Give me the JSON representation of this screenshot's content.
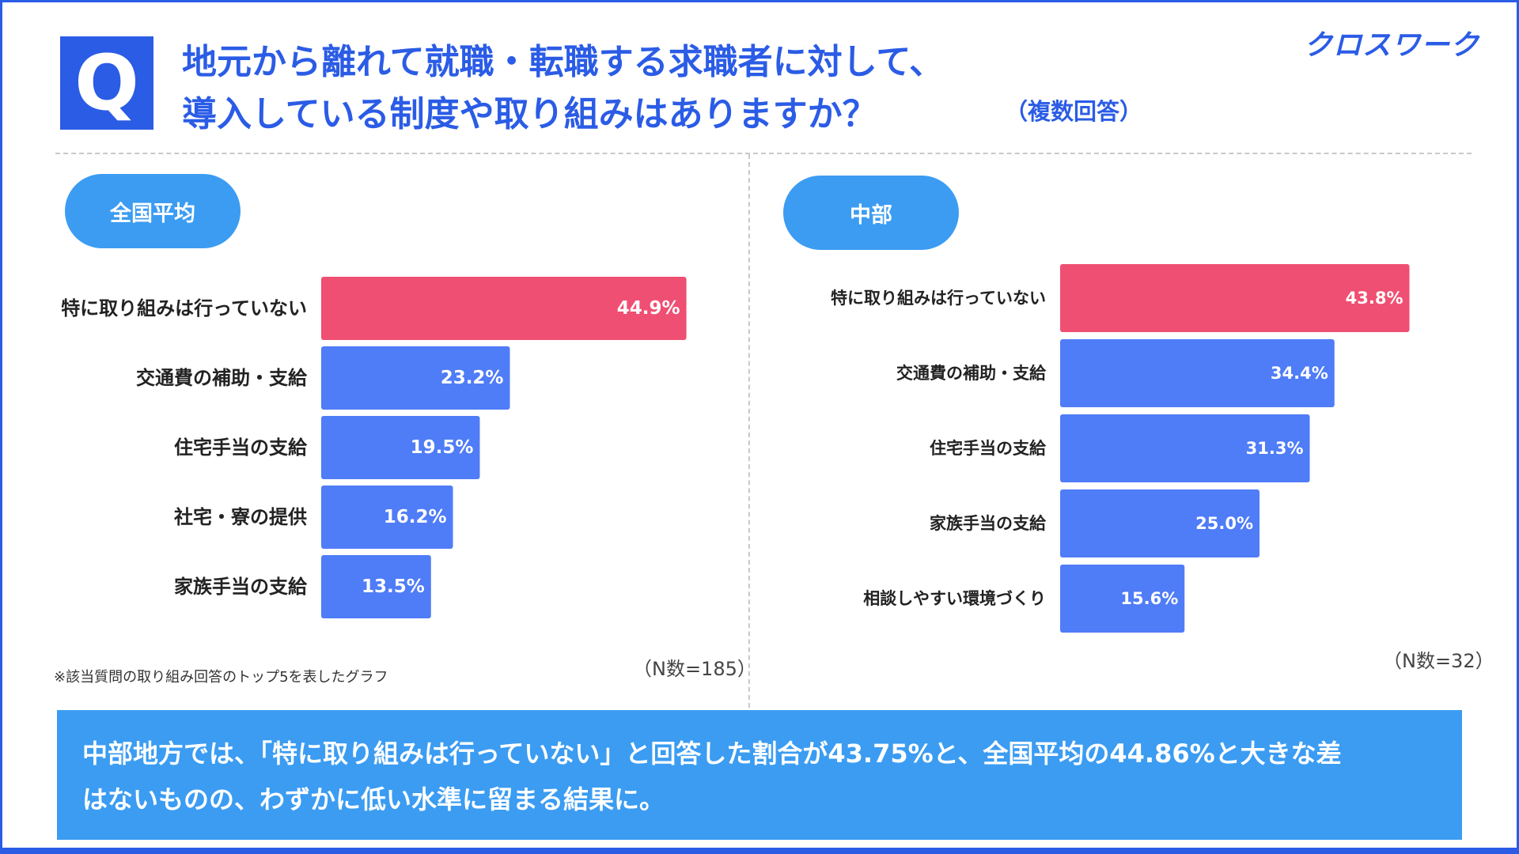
{
  "brand": {
    "logo": "クロスワーク",
    "accent": "#2b5ce6",
    "highlight": "#ef4f72",
    "bar": "#4f7cf7",
    "pill": "#3b9cf2"
  },
  "question": {
    "badge": "Q",
    "line1": "地元から離れて就職・転職する求職者に対して、",
    "line2": "導入している制度や取り組みはありますか？",
    "note": "（複数回答）"
  },
  "footnote": "※該当質問の取り組み回答のトップ5を表したグラフ",
  "summary": {
    "line1": "中部地方では、「特に取り組みは行っていない」と回答した割合が43.75%と、全国平均の44.86%と大きな差",
    "line2": "はないものの、わずかに低い水準に留まる結果に。"
  },
  "chart_data": [
    {
      "type": "bar",
      "orientation": "horizontal",
      "title": "全国平均",
      "sample": "（N数=185）",
      "categories": [
        "特に取り組みは行っていない",
        "交通費の補助・支給",
        "住宅手当の支給",
        "社宅・寮の提供",
        "家族手当の支給"
      ],
      "values": [
        44.9,
        23.2,
        19.5,
        16.2,
        13.5
      ],
      "labels": [
        "44.9%",
        "23.2%",
        "19.5%",
        "16.2%",
        "13.5%"
      ],
      "unit": "%",
      "xlim": [
        0,
        100
      ],
      "grid": false
    },
    {
      "type": "bar",
      "orientation": "horizontal",
      "title": "中部",
      "sample": "（N数=32）",
      "categories": [
        "特に取り組みは行っていない",
        "交通費の補助・支給",
        "住宅手当の支給",
        "家族手当の支給",
        "相談しやすい環境づくり"
      ],
      "values": [
        43.8,
        34.4,
        31.3,
        25.0,
        15.6
      ],
      "labels": [
        "43.8%",
        "34.4%",
        "31.3%",
        "25.0%",
        "15.6%"
      ],
      "unit": "%",
      "xlim": [
        0,
        100
      ],
      "grid": false
    }
  ]
}
